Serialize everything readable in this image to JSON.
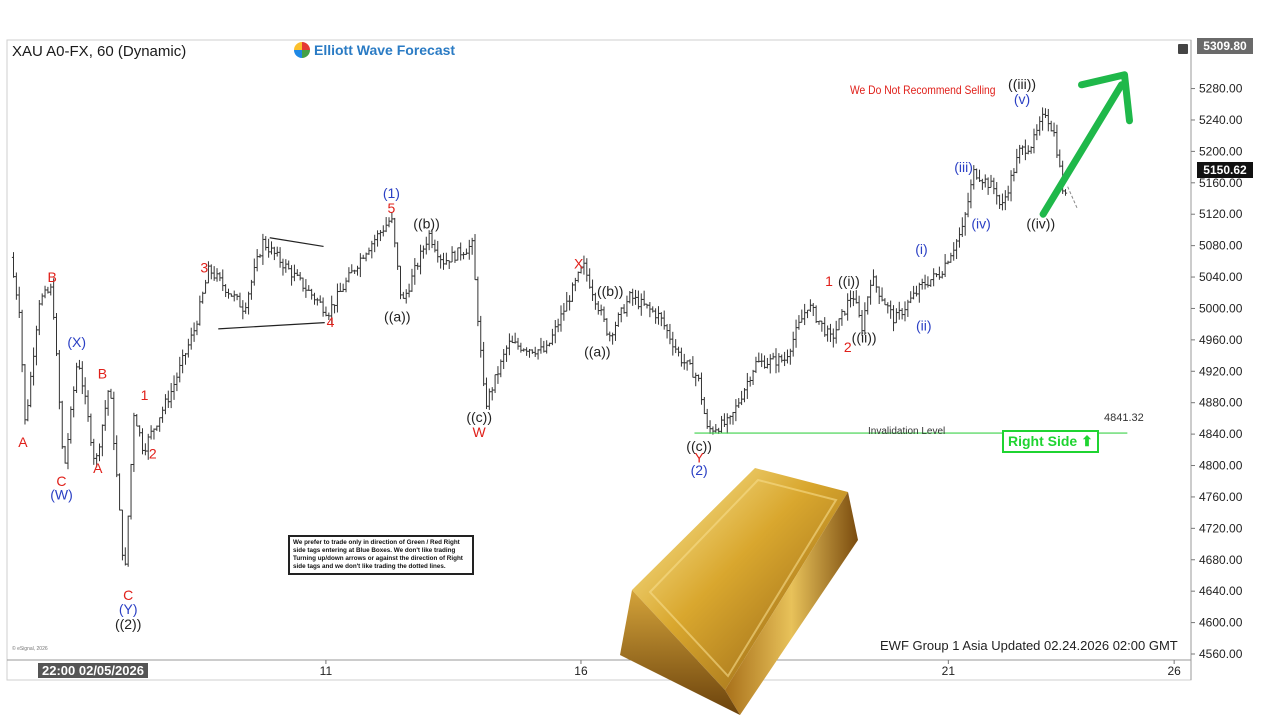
{
  "header": {
    "symbol_title": "XAU A0-FX, 60 (Dynamic)",
    "brand": "Elliott Wave Forecast"
  },
  "annotations": {
    "recommendation": "We Do Not Recommend Selling",
    "right_side": "Right Side ⬆",
    "invalidation_label": "Invalidation Level",
    "invalidation_value": "4841.32",
    "note": "We prefer to trade only in direction of Green / Red Right side tags entering at Blue Boxes. We don't like trading Turning up/down arrows or against the direction of Right side tags and we don't like trading the dotted lines.",
    "footer": "EWF Group 1 Asia Updated 02.24.2026 02:00 GMT",
    "copyright": "© eSignal, 2026"
  },
  "price_labels": {
    "current": "5150.62",
    "top": "5309.80"
  },
  "date_axis": {
    "start": "22:00 02/05/2026"
  },
  "colors": {
    "red": "#e0201a",
    "blue": "#2a3fc4",
    "black": "#222222",
    "green": "#1fd431",
    "bars": "#333333"
  },
  "chart_data": {
    "type": "ohlc",
    "ylim": [
      4560,
      5310
    ],
    "xlim": [
      0,
      100
    ],
    "yticks": [
      "5280.00",
      "5240.00",
      "5200.00",
      "5160.00",
      "5120.00",
      "5080.00",
      "5040.00",
      "5000.00",
      "4960.00",
      "4920.00",
      "4880.00",
      "4840.00",
      "4800.00",
      "4760.00",
      "4720.00",
      "4680.00",
      "4640.00",
      "4600.00",
      "4560.00"
    ],
    "xticks": [
      {
        "x": 27.0,
        "label": "11"
      },
      {
        "x": 48.8,
        "label": "16"
      },
      {
        "x": 80.2,
        "label": "21"
      },
      {
        "x": 99.5,
        "label": "26"
      }
    ],
    "price_path": [
      [
        0,
        5065
      ],
      [
        0.8,
        5000
      ],
      [
        1.3,
        4850
      ],
      [
        2.5,
        5010
      ],
      [
        3.6,
        5025
      ],
      [
        4.6,
        4790
      ],
      [
        5.8,
        4940
      ],
      [
        7.3,
        4800
      ],
      [
        8.5,
        4905
      ],
      [
        9.8,
        4655
      ],
      [
        10.6,
        4870
      ],
      [
        11.4,
        4820
      ],
      [
        13.8,
        4895
      ],
      [
        15.8,
        4975
      ],
      [
        17.0,
        5050
      ],
      [
        20.0,
        5000
      ],
      [
        21.6,
        5085
      ],
      [
        25.0,
        5030
      ],
      [
        27.2,
        4995
      ],
      [
        30.2,
        5070
      ],
      [
        32.6,
        5115
      ],
      [
        33.5,
        5005
      ],
      [
        35.8,
        5095
      ],
      [
        37.0,
        5060
      ],
      [
        39.5,
        5080
      ],
      [
        40.6,
        4875
      ],
      [
        42.6,
        4955
      ],
      [
        45.8,
        4945
      ],
      [
        49.0,
        5055
      ],
      [
        51.2,
        4965
      ],
      [
        53.0,
        5015
      ],
      [
        55.5,
        4990
      ],
      [
        57.4,
        4935
      ],
      [
        58.8,
        4912
      ],
      [
        59.6,
        4845
      ],
      [
        61.5,
        4855
      ],
      [
        63.7,
        4930
      ],
      [
        66.2,
        4935
      ],
      [
        68.2,
        5005
      ],
      [
        70.2,
        4960
      ],
      [
        72.0,
        5020
      ],
      [
        72.8,
        4975
      ],
      [
        73.6,
        5040
      ],
      [
        75.6,
        4985
      ],
      [
        78.0,
        5030
      ],
      [
        79.5,
        5045
      ],
      [
        81.4,
        5100
      ],
      [
        82.4,
        5175
      ],
      [
        84.3,
        5150
      ],
      [
        84.7,
        5125
      ],
      [
        86.3,
        5200
      ],
      [
        87.4,
        5210
      ],
      [
        88.5,
        5250
      ],
      [
        89.3,
        5220
      ],
      [
        90.0,
        5150
      ],
      [
        90.6,
        5125
      ]
    ],
    "wave_labels": [
      {
        "x": 1.1,
        "y": 4830,
        "text": "A",
        "color": "red"
      },
      {
        "x": 3.6,
        "y": 5040,
        "text": "B",
        "color": "red"
      },
      {
        "x": 4.4,
        "y": 4780,
        "text": "C",
        "color": "red"
      },
      {
        "x": 4.4,
        "y": 4763,
        "text": "(W)",
        "color": "blue"
      },
      {
        "x": 5.7,
        "y": 4957,
        "text": "(X)",
        "color": "blue"
      },
      {
        "x": 7.5,
        "y": 4797,
        "text": "A",
        "color": "red"
      },
      {
        "x": 7.9,
        "y": 4917,
        "text": "B",
        "color": "red"
      },
      {
        "x": 10.1,
        "y": 4635,
        "text": "C",
        "color": "red"
      },
      {
        "x": 10.1,
        "y": 4617,
        "text": "(Y)",
        "color": "blue"
      },
      {
        "x": 10.1,
        "y": 4598,
        "text": "((2))",
        "color": "black"
      },
      {
        "x": 11.5,
        "y": 4890,
        "text": "1",
        "color": "red"
      },
      {
        "x": 12.2,
        "y": 4815,
        "text": "2",
        "color": "red"
      },
      {
        "x": 16.6,
        "y": 5052,
        "text": "3",
        "color": "red"
      },
      {
        "x": 27.4,
        "y": 4983,
        "text": "4",
        "color": "red"
      },
      {
        "x": 32.6,
        "y": 5147,
        "text": "(1)",
        "color": "blue"
      },
      {
        "x": 32.6,
        "y": 5128,
        "text": "5",
        "color": "red"
      },
      {
        "x": 35.6,
        "y": 5108,
        "text": "((b))",
        "color": "black"
      },
      {
        "x": 33.1,
        "y": 4990,
        "text": "((a))",
        "color": "black"
      },
      {
        "x": 40.1,
        "y": 4862,
        "text": "((c))",
        "color": "black"
      },
      {
        "x": 40.1,
        "y": 4843,
        "text": "W",
        "color": "red"
      },
      {
        "x": 48.6,
        "y": 5057,
        "text": "X",
        "color": "red"
      },
      {
        "x": 51.3,
        "y": 5022,
        "text": "((b))",
        "color": "black"
      },
      {
        "x": 50.2,
        "y": 4945,
        "text": "((a))",
        "color": "black"
      },
      {
        "x": 58.9,
        "y": 4825,
        "text": "((c))",
        "color": "black"
      },
      {
        "x": 58.9,
        "y": 4810,
        "text": "Y",
        "color": "red"
      },
      {
        "x": 58.9,
        "y": 4794,
        "text": "(2)",
        "color": "blue"
      },
      {
        "x": 70.0,
        "y": 5035,
        "text": "1",
        "color": "red"
      },
      {
        "x": 71.7,
        "y": 5035,
        "text": "((i))",
        "color": "black"
      },
      {
        "x": 71.6,
        "y": 4951,
        "text": "2",
        "color": "red"
      },
      {
        "x": 73.0,
        "y": 4963,
        "text": "((ii))",
        "color": "black"
      },
      {
        "x": 77.9,
        "y": 5076,
        "text": "(i)",
        "color": "blue"
      },
      {
        "x": 78.1,
        "y": 4978,
        "text": "(ii)",
        "color": "blue"
      },
      {
        "x": 81.5,
        "y": 5180,
        "text": "(iii)",
        "color": "blue"
      },
      {
        "x": 83.0,
        "y": 5108,
        "text": "(iv)",
        "color": "blue"
      },
      {
        "x": 86.5,
        "y": 5286,
        "text": "((iii))",
        "color": "black"
      },
      {
        "x": 86.5,
        "y": 5267,
        "text": "(v)",
        "color": "blue"
      },
      {
        "x": 88.1,
        "y": 5108,
        "text": "((iv))",
        "color": "black"
      }
    ],
    "triangle_lines": [
      [
        [
          17.8,
          4974
        ],
        [
          26.9,
          4982
        ]
      ],
      [
        [
          22.2,
          5090
        ],
        [
          26.8,
          5079
        ]
      ]
    ],
    "invalidation_level": 4841.32,
    "target_arrow": {
      "from": [
        88.3,
        5120
      ],
      "to": [
        95.0,
        5295
      ]
    }
  }
}
